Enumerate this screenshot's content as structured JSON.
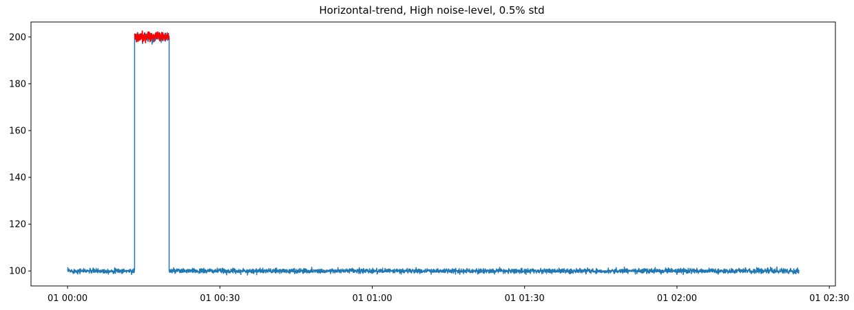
{
  "chart_data": {
    "type": "line",
    "title": "Horizontal-trend, High noise-level, 0.5% std",
    "xlabel": "",
    "ylabel": "",
    "x_unit": "minutes",
    "xlim": [
      -7.2,
      151.2
    ],
    "ylim": [
      93.6,
      206.4
    ],
    "x_ticks": [
      {
        "value": 0,
        "label": "01 00:00"
      },
      {
        "value": 30,
        "label": "01 00:30"
      },
      {
        "value": 60,
        "label": "01 01:00"
      },
      {
        "value": 90,
        "label": "01 01:30"
      },
      {
        "value": 120,
        "label": "01 02:00"
      },
      {
        "value": 150,
        "label": "01 02:30"
      }
    ],
    "y_ticks": [
      100,
      120,
      140,
      160,
      180,
      200
    ],
    "grid": false,
    "legend": "none",
    "series": [
      {
        "color": "#1f77b4",
        "noise_std_pct": 0.5,
        "segments": [
          {
            "x_start": 0,
            "x_end": 13.2,
            "level": 100
          },
          {
            "x_start": 13.2,
            "x_end": 20.0,
            "level": 200
          },
          {
            "x_start": 20.0,
            "x_end": 144,
            "level": 100
          }
        ]
      },
      {
        "color": "#ff0000",
        "noise_std_pct": 0.5,
        "segments": [
          {
            "x_start": 13.2,
            "x_end": 20.0,
            "level": 200
          }
        ]
      }
    ]
  }
}
